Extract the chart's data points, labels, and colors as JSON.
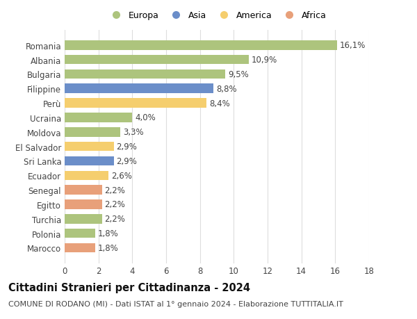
{
  "categories": [
    "Romania",
    "Albania",
    "Bulgaria",
    "Filippine",
    "Perù",
    "Ucraina",
    "Moldova",
    "El Salvador",
    "Sri Lanka",
    "Ecuador",
    "Senegal",
    "Egitto",
    "Turchia",
    "Polonia",
    "Marocco"
  ],
  "values": [
    16.1,
    10.9,
    9.5,
    8.8,
    8.4,
    4.0,
    3.3,
    2.9,
    2.9,
    2.6,
    2.2,
    2.2,
    2.2,
    1.8,
    1.8
  ],
  "labels": [
    "16,1%",
    "10,9%",
    "9,5%",
    "8,8%",
    "8,4%",
    "4,0%",
    "3,3%",
    "2,9%",
    "2,9%",
    "2,6%",
    "2,2%",
    "2,2%",
    "2,2%",
    "1,8%",
    "1,8%"
  ],
  "continents": [
    "Europa",
    "Europa",
    "Europa",
    "Asia",
    "America",
    "Europa",
    "Europa",
    "America",
    "Asia",
    "America",
    "Africa",
    "Africa",
    "Europa",
    "Europa",
    "Africa"
  ],
  "colors": {
    "Europa": "#adc47d",
    "Asia": "#6b8ec9",
    "America": "#f5ce6e",
    "Africa": "#e8a07a"
  },
  "legend_order": [
    "Europa",
    "Asia",
    "America",
    "Africa"
  ],
  "xlim": [
    0,
    18
  ],
  "xticks": [
    0,
    2,
    4,
    6,
    8,
    10,
    12,
    14,
    16,
    18
  ],
  "title": "Cittadini Stranieri per Cittadinanza - 2024",
  "subtitle": "COMUNE DI RODANO (MI) - Dati ISTAT al 1° gennaio 2024 - Elaborazione TUTTITALIA.IT",
  "background_color": "#ffffff",
  "bar_height": 0.65,
  "grid_color": "#dddddd",
  "label_fontsize": 8.5,
  "ytick_fontsize": 8.5,
  "xtick_fontsize": 8.5,
  "title_fontsize": 10.5,
  "subtitle_fontsize": 8.0
}
